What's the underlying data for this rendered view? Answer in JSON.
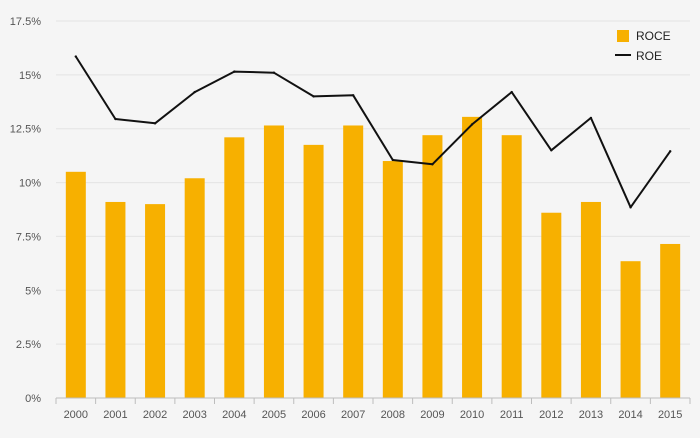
{
  "chart_data": {
    "type": "bar",
    "categories": [
      "2000",
      "2001",
      "2002",
      "2003",
      "2004",
      "2005",
      "2006",
      "2007",
      "2008",
      "2009",
      "2010",
      "2011",
      "2012",
      "2013",
      "2014",
      "2015"
    ],
    "series": [
      {
        "name": "ROCE",
        "type": "bar",
        "color": "#F7B000",
        "values": [
          10.5,
          9.1,
          9.0,
          10.2,
          12.1,
          12.65,
          11.75,
          12.65,
          11.0,
          12.2,
          13.05,
          12.2,
          8.6,
          9.1,
          6.35,
          7.15
        ]
      },
      {
        "name": "ROE",
        "type": "line",
        "color": "#111111",
        "values": [
          15.85,
          12.95,
          12.75,
          14.2,
          15.15,
          15.1,
          14.0,
          14.05,
          11.05,
          10.85,
          12.7,
          14.2,
          11.5,
          13.0,
          8.85,
          11.45
        ]
      }
    ],
    "ylim": [
      0,
      17.5
    ],
    "yticks": [
      {
        "value": 0,
        "label": "0%"
      },
      {
        "value": 2.5,
        "label": "2.5%"
      },
      {
        "value": 5,
        "label": "5%"
      },
      {
        "value": 7.5,
        "label": "7.5%"
      },
      {
        "value": 10,
        "label": "10%"
      },
      {
        "value": 12.5,
        "label": "12.5%"
      },
      {
        "value": 15,
        "label": "15%"
      },
      {
        "value": 17.5,
        "label": "17.5%"
      }
    ],
    "grid": true,
    "legend_position": "top-right",
    "title": "",
    "xlabel": "",
    "ylabel": ""
  }
}
